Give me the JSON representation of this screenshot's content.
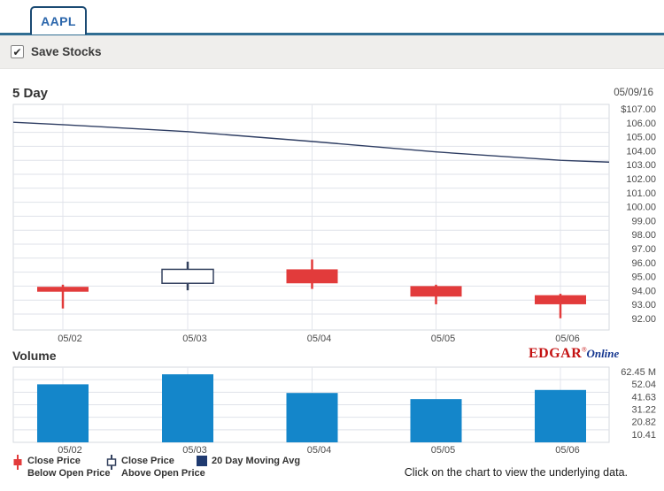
{
  "tabs": {
    "aapl": "AAPL"
  },
  "save_bar": {
    "label": "Save Stocks",
    "checked": true,
    "checkmark": "✔"
  },
  "branding": {
    "edgar": "EDGAR",
    "reg_mark": "®",
    "online": "Online"
  },
  "legend": {
    "items": [
      {
        "icon": "red-candle-icon",
        "lines": [
          "Close Price",
          "Below Open Price"
        ]
      },
      {
        "icon": "white-candle-icon",
        "lines": [
          "Close Price",
          "Above Open Price"
        ]
      },
      {
        "icon": "navy-square-icon",
        "lines": [
          "20 Day Moving Avg"
        ]
      }
    ]
  },
  "footer_note": "Click on the chart to view the underlying data.",
  "colors": {
    "down_candle": "#e23b3b",
    "up_candle_fill": "#ffffff",
    "up_candle_border": "#33415e",
    "ma_line": "#2f3e63",
    "volume_bar": "#1486ca",
    "tab_blue": "#2b66ab",
    "rule_blue": "#306e93"
  },
  "chart_data": [
    {
      "type": "candlestick",
      "title": "5 Day",
      "as_of_date": "05/09/16",
      "x_labels": [
        "05/02",
        "05/03",
        "05/04",
        "05/05",
        "05/06"
      ],
      "candles": [
        {
          "date": "05/02",
          "open": 93.95,
          "high": 94.1,
          "low": 92.4,
          "close": 93.6
        },
        {
          "date": "05/03",
          "open": 94.2,
          "high": 95.75,
          "low": 93.7,
          "close": 95.2
        },
        {
          "date": "05/04",
          "open": 95.2,
          "high": 95.9,
          "low": 93.8,
          "close": 94.2
        },
        {
          "date": "05/05",
          "open": 94.0,
          "high": 94.1,
          "low": 92.7,
          "close": 93.25
        },
        {
          "date": "05/06",
          "open": 93.35,
          "high": 93.45,
          "low": 91.7,
          "close": 92.7
        }
      ],
      "series": [
        {
          "name": "20 Day Moving Avg",
          "type": "line",
          "values": [
            105.72,
            105.55,
            105.05,
            104.35,
            103.6,
            103.0,
            102.87
          ],
          "note": "first and last values are plot-edge extensions"
        }
      ],
      "ylim": [
        90.9,
        107
      ],
      "y_tick_labels": [
        "$107.00",
        "106.00",
        "105.00",
        "104.00",
        "103.00",
        "102.00",
        "101.00",
        "100.00",
        "99.00",
        "98.00",
        "97.00",
        "96.00",
        "95.00",
        "94.00",
        "93.00",
        "92.00"
      ],
      "y_tick_values": [
        107,
        106,
        105,
        104,
        103,
        102,
        101,
        100,
        99,
        98,
        97,
        96,
        95,
        94,
        93,
        92
      ],
      "legend": [
        "Close Price Below Open Price",
        "Close Price Above Open Price",
        "20 Day Moving Avg"
      ],
      "grid": true
    },
    {
      "type": "bar",
      "title": "Volume",
      "categories": [
        "05/02",
        "05/03",
        "05/04",
        "05/05",
        "05/06"
      ],
      "values": [
        48.2,
        56.5,
        41.0,
        35.9,
        43.5
      ],
      "unit": "millions of shares",
      "ylim": [
        0,
        62.45
      ],
      "y_tick_labels": [
        "62.45 M",
        "52.04",
        "41.63",
        "31.22",
        "20.82",
        "10.41"
      ],
      "y_tick_values": [
        62.45,
        52.04,
        41.63,
        31.22,
        20.82,
        10.41
      ],
      "grid": true
    }
  ]
}
